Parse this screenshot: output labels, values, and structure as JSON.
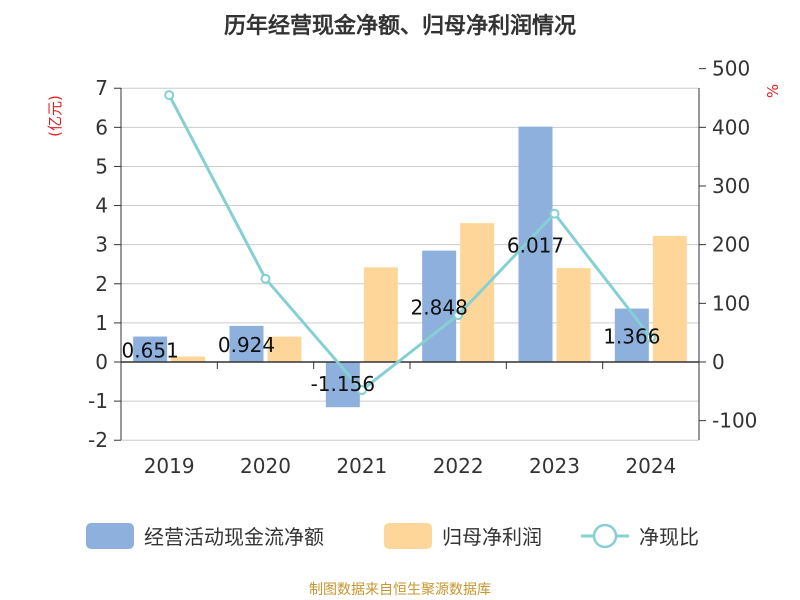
{
  "chart_data": {
    "type": "bar",
    "title": "历年经营现金净额、归母净利润情况",
    "categories": [
      "2019",
      "2020",
      "2021",
      "2022",
      "2023",
      "2024"
    ],
    "y_left": {
      "unit": "(亿元)",
      "ylim": [
        -2,
        7
      ],
      "ticks": [
        "7",
        "6",
        "5",
        "4",
        "3",
        "2",
        "1",
        "0",
        "-1",
        "-2"
      ]
    },
    "y_right": {
      "unit": "%",
      "ylim": [
        -100,
        500
      ],
      "ticks": [
        "500",
        "400",
        "300",
        "200",
        "100",
        "0",
        "-100"
      ]
    },
    "series": [
      {
        "name": "经营活动现金流净额",
        "type": "bar",
        "axis": "left",
        "color": "#8eb0dc",
        "values": [
          0.651,
          0.924,
          -1.156,
          2.848,
          6.017,
          1.366
        ],
        "labels": [
          "0.651",
          "0.924",
          "-1.156",
          "2.848",
          "6.017",
          "1.366"
        ]
      },
      {
        "name": "归母净利润",
        "type": "bar",
        "axis": "left",
        "color": "#ffd699",
        "values": [
          0.14,
          0.65,
          2.42,
          3.55,
          2.4,
          3.22
        ]
      },
      {
        "name": "净现比",
        "type": "line",
        "axis": "right",
        "color": "#86d0d4",
        "values": [
          455,
          142,
          -48,
          80,
          253,
          42
        ]
      }
    ],
    "grid": true,
    "legend_position": "bottom"
  },
  "source": "制图数据来自恒生聚源数据库"
}
